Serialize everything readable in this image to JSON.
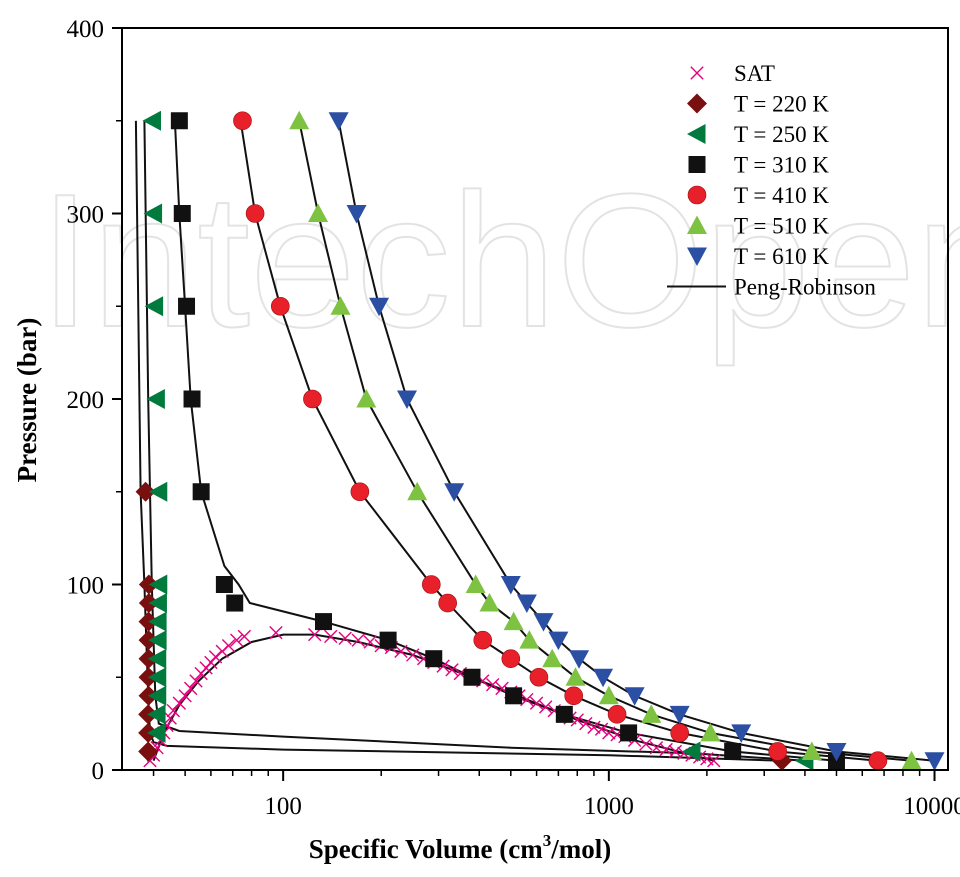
{
  "chart_data": {
    "type": "scatter",
    "title": "",
    "xlabel_main": "Specific Volume (cm",
    "xlabel_sup": "3",
    "xlabel_tail": "/mol)",
    "ylabel": "Pressure (bar)",
    "xscale": "log",
    "xlim": [
      32,
      11000
    ],
    "ylim": [
      0,
      400
    ],
    "x_ticks": [
      {
        "value": 100,
        "label": "100"
      },
      {
        "value": 1000,
        "label": "1000"
      },
      {
        "value": 10000,
        "label": "10000"
      }
    ],
    "y_ticks": [
      {
        "value": 0,
        "label": "0"
      },
      {
        "value": 100,
        "label": "100"
      },
      {
        "value": 200,
        "label": "200"
      },
      {
        "value": 300,
        "label": "300"
      },
      {
        "value": 400,
        "label": "400"
      }
    ],
    "grid": false,
    "legend_position": "top-right",
    "watermark": "IntechOpen",
    "series": [
      {
        "name": "SAT",
        "marker": "x",
        "color": "#e6007e",
        "points": [
          [
            39,
            5
          ],
          [
            40,
            8
          ],
          [
            41,
            12
          ],
          [
            42,
            16
          ],
          [
            43,
            20
          ],
          [
            44,
            24
          ],
          [
            45,
            28
          ],
          [
            46,
            32
          ],
          [
            48,
            36
          ],
          [
            50,
            40
          ],
          [
            52,
            44
          ],
          [
            54,
            48
          ],
          [
            56,
            52
          ],
          [
            58,
            55
          ],
          [
            60,
            58
          ],
          [
            62,
            61
          ],
          [
            65,
            64
          ],
          [
            68,
            67
          ],
          [
            72,
            70
          ],
          [
            76,
            72
          ],
          [
            95,
            74
          ],
          [
            125,
            73
          ],
          [
            140,
            72
          ],
          [
            155,
            71
          ],
          [
            170,
            70
          ],
          [
            185,
            69
          ],
          [
            200,
            67
          ],
          [
            215,
            66
          ],
          [
            230,
            64
          ],
          [
            250,
            62
          ],
          [
            270,
            60
          ],
          [
            290,
            58
          ],
          [
            310,
            56
          ],
          [
            330,
            54
          ],
          [
            350,
            52
          ],
          [
            380,
            50
          ],
          [
            410,
            48
          ],
          [
            440,
            46
          ],
          [
            470,
            44
          ],
          [
            500,
            42
          ],
          [
            530,
            40
          ],
          [
            560,
            38
          ],
          [
            600,
            36
          ],
          [
            640,
            34
          ],
          [
            680,
            32
          ],
          [
            720,
            30
          ],
          [
            760,
            28
          ],
          [
            800,
            27
          ],
          [
            850,
            25
          ],
          [
            900,
            23
          ],
          [
            950,
            22
          ],
          [
            1000,
            20
          ],
          [
            1060,
            19
          ],
          [
            1120,
            18
          ],
          [
            1200,
            16
          ],
          [
            1300,
            14
          ],
          [
            1400,
            12
          ],
          [
            1500,
            11
          ],
          [
            1600,
            10
          ],
          [
            1700,
            9
          ],
          [
            1800,
            8
          ],
          [
            1900,
            7
          ],
          [
            2000,
            6
          ],
          [
            2100,
            5
          ]
        ]
      },
      {
        "name": "T = 220 K",
        "marker": "diamond",
        "color": "#7a0f0f",
        "points": [
          [
            38.5,
            10
          ],
          [
            38.5,
            20
          ],
          [
            38.5,
            30
          ],
          [
            38.6,
            40
          ],
          [
            38.6,
            50
          ],
          [
            38.6,
            60
          ],
          [
            38.6,
            70
          ],
          [
            38.6,
            80
          ],
          [
            38.7,
            90
          ],
          [
            38.7,
            100
          ],
          [
            37.8,
            150
          ],
          [
            3400,
            5
          ]
        ]
      },
      {
        "name": "T = 250 K",
        "marker": "triangle-left",
        "color": "#007a3d",
        "points": [
          [
            41,
            20
          ],
          [
            41,
            30
          ],
          [
            41.2,
            40
          ],
          [
            41.2,
            50
          ],
          [
            41.2,
            60
          ],
          [
            41.3,
            70
          ],
          [
            41.3,
            80
          ],
          [
            41.4,
            90
          ],
          [
            41.5,
            100
          ],
          [
            41.5,
            150
          ],
          [
            40.8,
            200
          ],
          [
            40.3,
            250
          ],
          [
            40,
            300
          ],
          [
            39.7,
            350
          ],
          [
            1800,
            10
          ],
          [
            4000,
            5
          ]
        ]
      },
      {
        "name": "T = 310 K",
        "marker": "square",
        "color": "#111111",
        "points": [
          [
            48,
            350
          ],
          [
            49,
            300
          ],
          [
            50.5,
            250
          ],
          [
            52.5,
            200
          ],
          [
            56,
            150
          ],
          [
            66,
            100
          ],
          [
            71,
            90
          ],
          [
            133,
            80
          ],
          [
            210,
            70
          ],
          [
            290,
            60
          ],
          [
            380,
            50
          ],
          [
            510,
            40
          ],
          [
            730,
            30
          ],
          [
            1150,
            20
          ],
          [
            2400,
            10
          ],
          [
            5000,
            5
          ]
        ]
      },
      {
        "name": "T = 410 K",
        "marker": "circle",
        "color": "#e8202a",
        "points": [
          [
            75,
            350
          ],
          [
            82,
            300
          ],
          [
            98,
            250
          ],
          [
            123,
            200
          ],
          [
            172,
            150
          ],
          [
            285,
            100
          ],
          [
            320,
            90
          ],
          [
            410,
            70
          ],
          [
            500,
            60
          ],
          [
            610,
            50
          ],
          [
            780,
            40
          ],
          [
            1060,
            30
          ],
          [
            1650,
            20
          ],
          [
            3300,
            10
          ],
          [
            6700,
            5
          ]
        ]
      },
      {
        "name": "T = 510 K",
        "marker": "triangle-up",
        "color": "#7ec242",
        "points": [
          [
            112,
            350
          ],
          [
            128,
            300
          ],
          [
            150,
            250
          ],
          [
            180,
            200
          ],
          [
            258,
            150
          ],
          [
            390,
            100
          ],
          [
            430,
            90
          ],
          [
            510,
            80
          ],
          [
            570,
            70
          ],
          [
            670,
            60
          ],
          [
            790,
            50
          ],
          [
            1000,
            40
          ],
          [
            1350,
            30
          ],
          [
            2050,
            20
          ],
          [
            4200,
            10
          ],
          [
            8500,
            5
          ]
        ]
      },
      {
        "name": "T = 610 K",
        "marker": "triangle-down",
        "color": "#2b4fa3",
        "points": [
          [
            148,
            350
          ],
          [
            168,
            300
          ],
          [
            197,
            250
          ],
          [
            240,
            200
          ],
          [
            335,
            150
          ],
          [
            500,
            100
          ],
          [
            560,
            90
          ],
          [
            630,
            80
          ],
          [
            700,
            70
          ],
          [
            810,
            60
          ],
          [
            960,
            50
          ],
          [
            1200,
            40
          ],
          [
            1650,
            30
          ],
          [
            2550,
            20
          ],
          [
            5000,
            10
          ],
          [
            10000,
            5
          ]
        ]
      },
      {
        "name": "Peng-Robinson",
        "marker": "line",
        "color": "#111111",
        "curves": [
          [
            [
              35.3,
              350
            ],
            [
              36.5,
              150
            ],
            [
              37.5,
              100
            ],
            [
              38.5,
              40
            ],
            [
              39,
              20
            ],
            [
              40,
              15
            ],
            [
              44,
              13
            ],
            [
              100,
              11
            ],
            [
              1000,
              8
            ],
            [
              3400,
              5
            ]
          ],
          [
            [
              37.5,
              350
            ],
            [
              38.5,
              200
            ],
            [
              39.5,
              100
            ],
            [
              40.5,
              40
            ],
            [
              41.5,
              25
            ],
            [
              48,
              21
            ],
            [
              100,
              18
            ],
            [
              500,
              12
            ],
            [
              1800,
              9
            ],
            [
              4000,
              5
            ]
          ],
          [
            [
              46.5,
              350
            ],
            [
              48,
              300
            ],
            [
              50,
              250
            ],
            [
              52,
              200
            ],
            [
              56,
              150
            ],
            [
              66,
              110
            ],
            [
              73,
              100
            ],
            [
              79,
              90
            ],
            [
              133,
              80
            ],
            [
              210,
              70
            ],
            [
              290,
              60
            ],
            [
              380,
              50
            ],
            [
              510,
              40
            ],
            [
              730,
              30
            ],
            [
              1150,
              20
            ],
            [
              2400,
              10
            ],
            [
              5000,
              5
            ]
          ],
          [
            [
              74,
              350
            ],
            [
              82,
              300
            ],
            [
              98,
              250
            ],
            [
              123,
              200
            ],
            [
              172,
              150
            ],
            [
              285,
              100
            ],
            [
              320,
              90
            ],
            [
              410,
              70
            ],
            [
              500,
              60
            ],
            [
              610,
              50
            ],
            [
              780,
              40
            ],
            [
              1060,
              30
            ],
            [
              1650,
              20
            ],
            [
              3300,
              10
            ],
            [
              6700,
              5
            ]
          ],
          [
            [
              112,
              350
            ],
            [
              128,
              300
            ],
            [
              150,
              250
            ],
            [
              180,
              200
            ],
            [
              258,
              150
            ],
            [
              390,
              100
            ],
            [
              430,
              90
            ],
            [
              510,
              80
            ],
            [
              570,
              70
            ],
            [
              670,
              60
            ],
            [
              790,
              50
            ],
            [
              1000,
              40
            ],
            [
              1350,
              30
            ],
            [
              2050,
              20
            ],
            [
              4200,
              10
            ],
            [
              8500,
              5
            ]
          ],
          [
            [
              148,
              350
            ],
            [
              168,
              300
            ],
            [
              197,
              250
            ],
            [
              240,
              200
            ],
            [
              335,
              150
            ],
            [
              500,
              100
            ],
            [
              560,
              90
            ],
            [
              630,
              80
            ],
            [
              700,
              70
            ],
            [
              810,
              60
            ],
            [
              960,
              50
            ],
            [
              1200,
              40
            ],
            [
              1650,
              30
            ],
            [
              2550,
              20
            ],
            [
              5000,
              10
            ],
            [
              10000,
              5
            ]
          ],
          [
            [
              40,
              5
            ],
            [
              43,
              20
            ],
            [
              48,
              35
            ],
            [
              55,
              48
            ],
            [
              65,
              60
            ],
            [
              80,
              69
            ],
            [
              100,
              73
            ],
            [
              125,
              73
            ],
            [
              170,
              69
            ],
            [
              250,
              62
            ],
            [
              380,
              50
            ],
            [
              560,
              38
            ],
            [
              800,
              27
            ],
            [
              1200,
              16
            ],
            [
              2100,
              5
            ]
          ]
        ]
      }
    ]
  }
}
